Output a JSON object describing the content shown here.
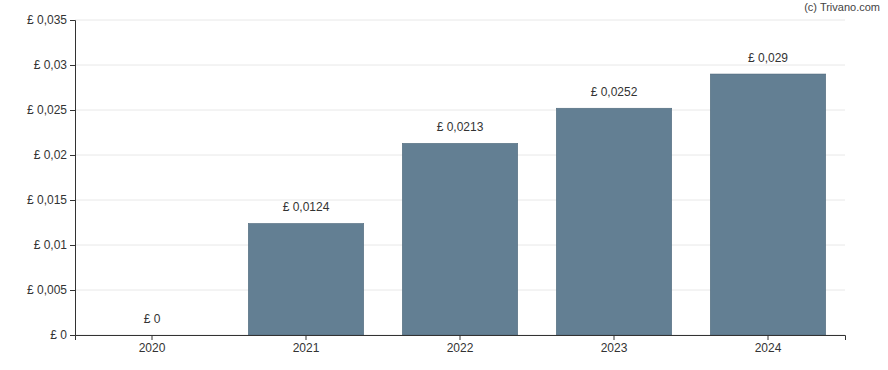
{
  "chart_data": {
    "type": "bar",
    "annotations": [
      "(c) Trivano.com"
    ],
    "categories": [
      "2020",
      "2021",
      "2022",
      "2023",
      "2024"
    ],
    "values": [
      0,
      0.0124,
      0.0213,
      0.0252,
      0.029
    ],
    "value_labels": [
      "£ 0",
      "£ 0,0124",
      "£ 0,0213",
      "£ 0,0252",
      "£ 0,029"
    ],
    "data_labels": true,
    "color": "#637f93",
    "ylim": [
      0,
      0.035
    ],
    "yticks": [
      {
        "value": 0,
        "label": "£ 0"
      },
      {
        "value": 0.005,
        "label": "£ 0,005"
      },
      {
        "value": 0.01,
        "label": "£ 0,01"
      },
      {
        "value": 0.015,
        "label": "£ 0,015"
      },
      {
        "value": 0.02,
        "label": "£ 0,02"
      },
      {
        "value": 0.025,
        "label": "£ 0,025"
      },
      {
        "value": 0.03,
        "label": "£ 0,03"
      },
      {
        "value": 0.035,
        "label": "£ 0,035"
      }
    ],
    "grid": true
  }
}
